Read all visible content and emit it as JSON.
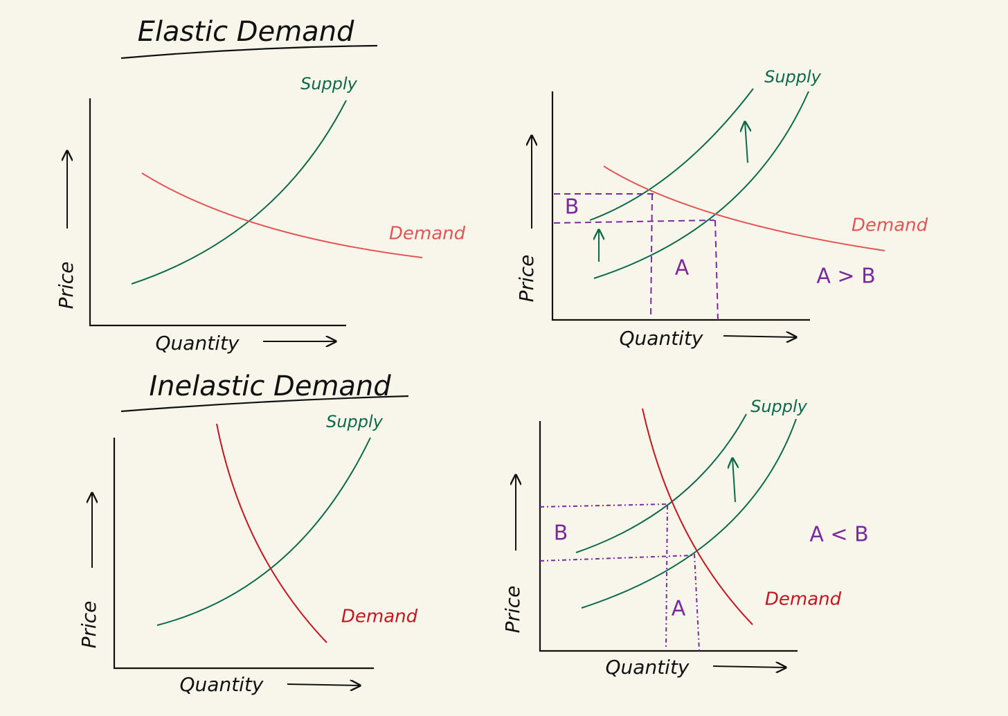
{
  "sections": [
    {
      "title": "Elastic Demand",
      "panels": [
        {
          "y_label": "Price",
          "x_label": "Quantity",
          "supply_label": "Supply",
          "demand_label": "Demand"
        },
        {
          "y_label": "Price",
          "x_label": "Quantity",
          "supply_label": "Supply",
          "demand_label": "Demand",
          "area_a": "A",
          "area_b": "B",
          "comparison": "A > B"
        }
      ]
    },
    {
      "title": "Inelastic Demand",
      "panels": [
        {
          "y_label": "Price",
          "x_label": "Quantity",
          "supply_label": "Supply",
          "demand_label": "Demand"
        },
        {
          "y_label": "Price",
          "x_label": "Quantity",
          "supply_label": "Supply",
          "demand_label": "Demand",
          "area_a": "A",
          "area_b": "B",
          "comparison": "A < B"
        }
      ]
    }
  ]
}
